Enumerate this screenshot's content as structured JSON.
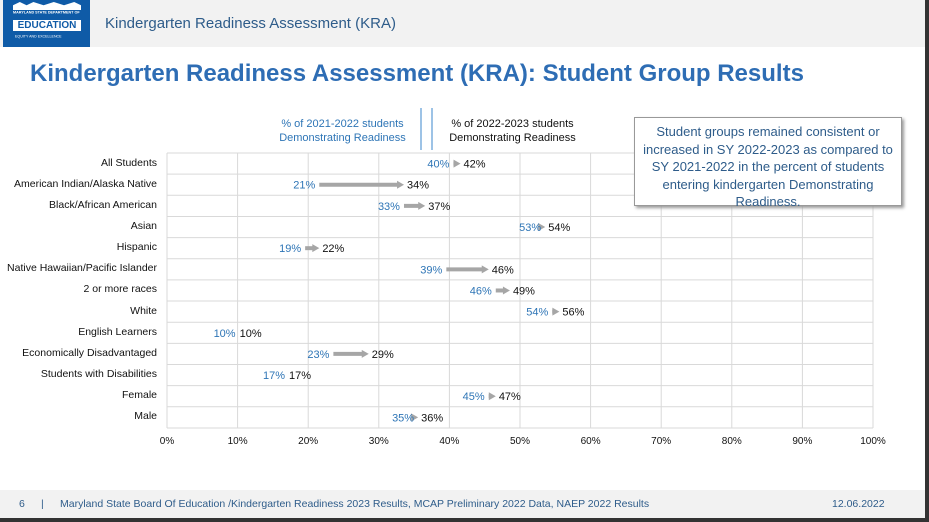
{
  "header": {
    "logo_text": "EDUCATION",
    "logo_subtext": "MARYLAND STATE DEPARTMENT OF",
    "logo_tagline": "EQUITY AND EXCELLENCE",
    "title": "Kindergarten Readiness Assessment (KRA)"
  },
  "slide_title": "Kindergarten Readiness Assessment (KRA): Student Group Results",
  "callout": "Student groups remained consistent or increased in SY 2022-2023 as compared to SY 2021-2022 in the percent of students entering kindergarten Demonstrating Readiness.",
  "footer": {
    "page": "6",
    "separator": "|",
    "source": "Maryland State Board Of Education /Kindergarten Readiness 2023 Results, MCAP Preliminary 2022 Data, NAEP 2022 Results",
    "date": "12.06.2022"
  },
  "chart_data": {
    "type": "dumbbell-arrow",
    "legend": [
      "% of 2021-2022 students Demonstrating Readiness",
      "% of 2022-2023 students Demonstrating Readiness"
    ],
    "categories": [
      "All Students",
      "American Indian/Alaska Native",
      "Black/African American",
      "Asian",
      "Hispanic",
      "Native Hawaiian/Pacific Islander",
      "2 or more races",
      "White",
      "English Learners",
      "Economically Disadvantaged",
      "Students with Disabilities",
      "Female",
      "Male"
    ],
    "series": [
      {
        "name": "% of 2021-2022 students Demonstrating Readiness",
        "values": [
          40,
          21,
          33,
          53,
          19,
          39,
          46,
          54,
          10,
          23,
          17,
          45,
          35
        ],
        "color": "#2e75b6"
      },
      {
        "name": "% of 2022-2023 students Demonstrating Readiness",
        "values": [
          42,
          34,
          37,
          54,
          22,
          46,
          49,
          56,
          10,
          29,
          17,
          47,
          36
        ],
        "color": "#111111"
      }
    ],
    "arrow_color": "#a6a6a6",
    "xlim": [
      0,
      100
    ],
    "xticks": [
      "0%",
      "10%",
      "20%",
      "30%",
      "40%",
      "50%",
      "60%",
      "70%",
      "80%",
      "90%",
      "100%"
    ],
    "grid": true
  }
}
